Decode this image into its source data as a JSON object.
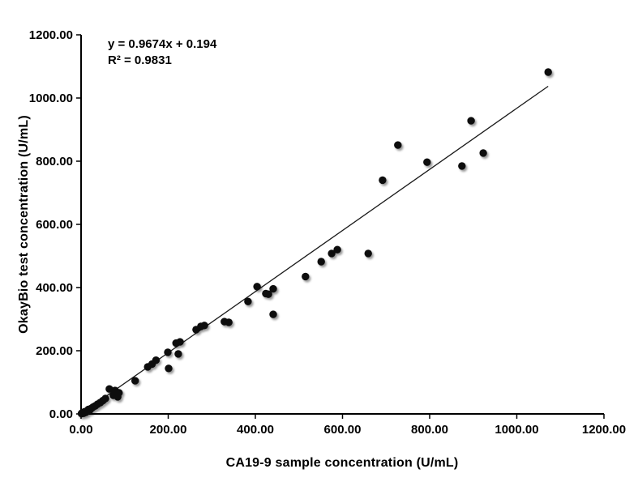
{
  "annotation": {
    "equation": "y = 0.9674x + 0.194",
    "r_squared": "R² = 0.9831"
  },
  "chart_data": {
    "type": "scatter",
    "title": "",
    "xlabel": "CA19-9 sample concentration (U/mL)",
    "ylabel": "OkayBio test concentration (U/mL)",
    "xlim": [
      0,
      1200
    ],
    "ylim": [
      0,
      1200
    ],
    "xtick_values": [
      0,
      200,
      400,
      600,
      800,
      1000,
      1200
    ],
    "xtick_labels": [
      "0.00",
      "200.00",
      "400.00",
      "600.00",
      "800.00",
      "1000.00",
      "1200.00"
    ],
    "ytick_values": [
      0,
      200,
      400,
      600,
      800,
      1000,
      1200
    ],
    "ytick_labels": [
      "0.00",
      "200.00",
      "400.00",
      "600.00",
      "800.00",
      "1000.00",
      "1200.00"
    ],
    "grid": false,
    "legend": false,
    "marker_color": "#0a0a0a",
    "axis_color": "#000000",
    "trendline": {
      "slope": 0.9674,
      "intercept": 0.194,
      "x_start": 0,
      "x_end": 1072,
      "color": "#1a1a1a"
    },
    "points": [
      [
        1,
        1
      ],
      [
        3,
        4
      ],
      [
        6,
        2
      ],
      [
        8,
        7
      ],
      [
        11,
        5
      ],
      [
        14,
        10
      ],
      [
        17,
        14
      ],
      [
        20,
        12
      ],
      [
        24,
        18
      ],
      [
        28,
        22
      ],
      [
        33,
        26
      ],
      [
        38,
        31
      ],
      [
        44,
        36
      ],
      [
        50,
        42
      ],
      [
        56,
        49
      ],
      [
        65,
        79
      ],
      [
        74,
        59
      ],
      [
        78,
        74
      ],
      [
        84,
        54
      ],
      [
        87,
        67
      ],
      [
        124,
        105
      ],
      [
        153,
        149
      ],
      [
        163,
        158
      ],
      [
        172,
        170
      ],
      [
        201,
        144
      ],
      [
        199,
        195
      ],
      [
        223,
        190
      ],
      [
        218,
        224
      ],
      [
        227,
        228
      ],
      [
        264,
        267
      ],
      [
        275,
        277
      ],
      [
        283,
        280
      ],
      [
        329,
        292
      ],
      [
        339,
        290
      ],
      [
        383,
        356
      ],
      [
        404,
        403
      ],
      [
        424,
        381
      ],
      [
        430,
        379
      ],
      [
        441,
        396
      ],
      [
        441,
        315
      ],
      [
        515,
        435
      ],
      [
        551,
        482
      ],
      [
        575,
        508
      ],
      [
        588,
        520
      ],
      [
        659,
        508
      ],
      [
        692,
        740
      ],
      [
        727,
        851
      ],
      [
        794,
        797
      ],
      [
        874,
        785
      ],
      [
        895,
        928
      ],
      [
        923,
        826
      ],
      [
        1072,
        1082
      ]
    ]
  }
}
